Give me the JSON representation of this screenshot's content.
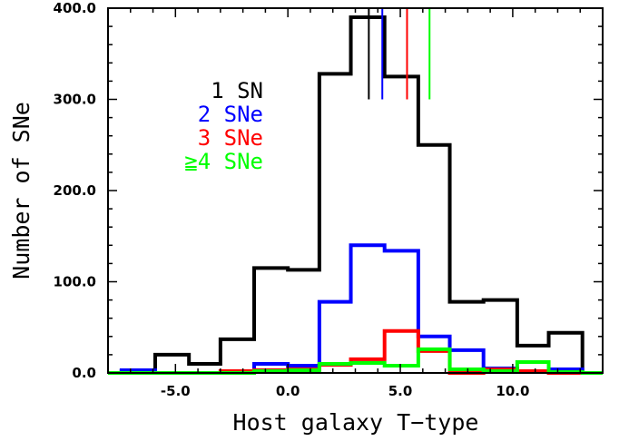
{
  "chart_data": {
    "type": "histogram",
    "xlabel": "Host galaxy T−type",
    "ylabel": "Number of SNe",
    "xlim": [
      -8,
      14
    ],
    "ylim": [
      0,
      400
    ],
    "xticks": [
      {
        "value": -5,
        "label": "-5.0"
      },
      {
        "value": 0,
        "label": "0.0"
      },
      {
        "value": 5,
        "label": "5.0"
      },
      {
        "value": 10,
        "label": "10.0"
      }
    ],
    "yticks": [
      {
        "value": 0,
        "label": "0.0"
      },
      {
        "value": 100,
        "label": "100.0"
      },
      {
        "value": 200,
        "label": "200.0"
      },
      {
        "value": 300,
        "label": "300.0"
      },
      {
        "value": 400,
        "label": "400.0"
      }
    ],
    "bin_edges": [
      -7.4,
      -5.9,
      -4.4,
      -3.0,
      -1.5,
      0.0,
      1.4,
      2.8,
      4.3,
      5.8,
      7.2,
      8.7,
      10.2,
      11.6,
      13.1
    ],
    "series": [
      {
        "name": "1 SN",
        "color": "#000000",
        "values": [
          2,
          20,
          10,
          37,
          115,
          113,
          328,
          390,
          325,
          250,
          78,
          80,
          30,
          44
        ],
        "median": 3.6
      },
      {
        "name": "2 SNe",
        "color": "#0000ff",
        "values": [
          3,
          0,
          0,
          0,
          10,
          8,
          78,
          140,
          134,
          40,
          25,
          5,
          2,
          4
        ],
        "median": 4.2
      },
      {
        "name": "3 SNe",
        "color": "#ff0000",
        "values": [
          0,
          0,
          0,
          2,
          3,
          4,
          9,
          15,
          46,
          24,
          0,
          4,
          2,
          0
        ],
        "median": 5.3
      },
      {
        "name": "≧4 SNe",
        "color": "#00ff00",
        "values": [
          0,
          0,
          0,
          0,
          2,
          3,
          10,
          11,
          8,
          26,
          4,
          2,
          12,
          1
        ],
        "median": 6.3
      }
    ]
  }
}
